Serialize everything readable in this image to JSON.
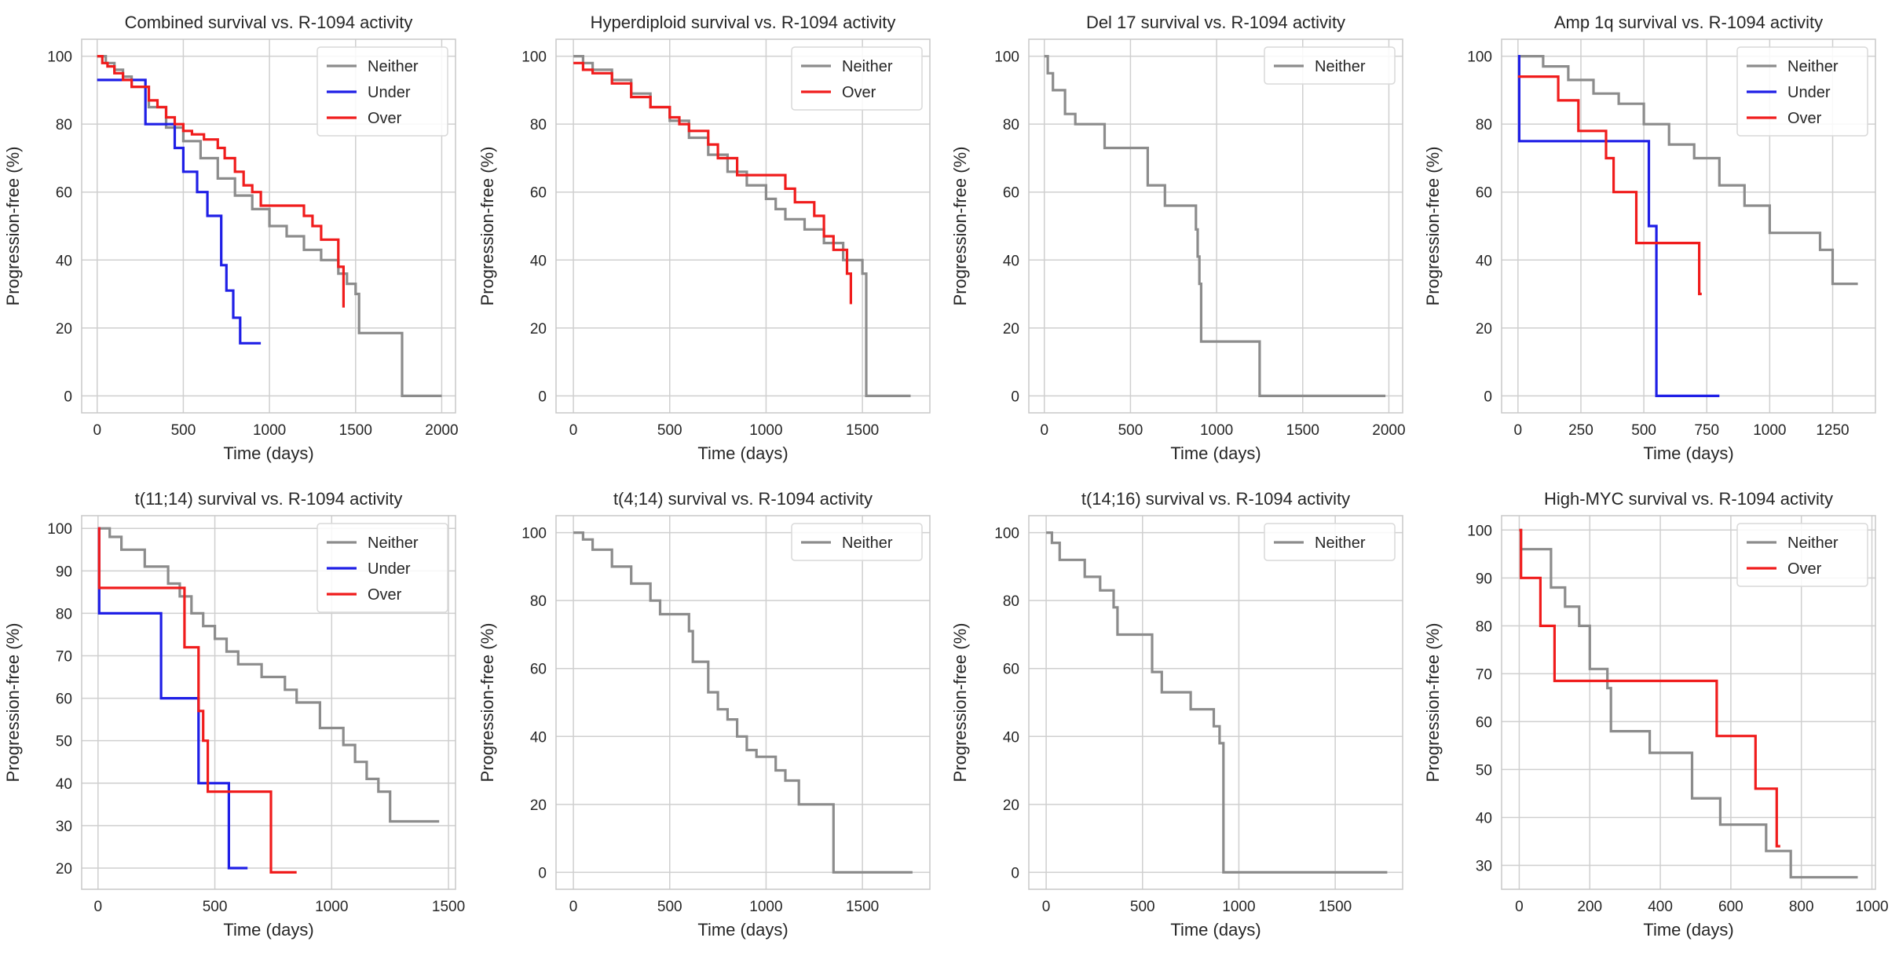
{
  "colors": {
    "Neither": "#8c8c8c",
    "Under": "#1f1fe6",
    "Over": "#f01c1c",
    "grid": "#cfcfcf",
    "spine": "#c8c8c8"
  },
  "chart_data": [
    {
      "type": "line",
      "step": true,
      "title": "Combined survival vs. R-1094 activity",
      "xlabel": "Time (days)",
      "ylabel": "Progression-free (%)",
      "xlim": [
        -90,
        2080
      ],
      "ylim": [
        -5,
        105
      ],
      "xticks": [
        0,
        500,
        1000,
        1500,
        2000
      ],
      "yticks": [
        0,
        20,
        40,
        60,
        80,
        100
      ],
      "legend": "top-right",
      "series": [
        {
          "name": "Neither",
          "x": [
            0,
            50,
            100,
            150,
            200,
            300,
            400,
            500,
            600,
            700,
            800,
            900,
            1000,
            1100,
            1200,
            1300,
            1400,
            1450,
            1500,
            1520,
            1750,
            1770,
            2000
          ],
          "y": [
            100,
            98,
            96,
            94,
            91,
            85,
            79,
            75,
            70,
            64,
            59,
            55,
            50,
            47,
            43,
            40,
            36,
            33,
            30,
            18.5,
            18.5,
            0,
            0
          ]
        },
        {
          "name": "Under",
          "x": [
            0,
            240,
            280,
            450,
            500,
            580,
            640,
            720,
            750,
            790,
            830,
            950
          ],
          "y": [
            93,
            93,
            80,
            73,
            66,
            60,
            53,
            38.5,
            31,
            23,
            15.5,
            15.5
          ]
        },
        {
          "name": "Over",
          "x": [
            0,
            30,
            60,
            100,
            150,
            200,
            300,
            350,
            400,
            450,
            500,
            550,
            620,
            700,
            740,
            800,
            850,
            900,
            950,
            1200,
            1250,
            1300,
            1400,
            1430
          ],
          "y": [
            100,
            98,
            97,
            95,
            93,
            91,
            87,
            85,
            82,
            80,
            78,
            77,
            75.5,
            73,
            70,
            66,
            62,
            60,
            56,
            53,
            50,
            46,
            38,
            26
          ]
        }
      ]
    },
    {
      "type": "line",
      "step": true,
      "title": "Hyperdiploid survival vs. R-1094 activity",
      "xlabel": "Time (days)",
      "ylabel": "Progression-free (%)",
      "xlim": [
        -90,
        1850
      ],
      "ylim": [
        -5,
        105
      ],
      "xticks": [
        0,
        500,
        1000,
        1500
      ],
      "yticks": [
        0,
        20,
        40,
        60,
        80,
        100
      ],
      "legend": "top-right",
      "series": [
        {
          "name": "Neither",
          "x": [
            0,
            50,
            100,
            200,
            300,
            400,
            500,
            600,
            700,
            800,
            900,
            1000,
            1050,
            1100,
            1200,
            1300,
            1400,
            1500,
            1520,
            1750
          ],
          "y": [
            100,
            98,
            96,
            93,
            89,
            85,
            81,
            76,
            71,
            66,
            62,
            58,
            55,
            52,
            49,
            45,
            40,
            36,
            0,
            0
          ]
        },
        {
          "name": "Over",
          "x": [
            0,
            50,
            100,
            200,
            300,
            400,
            500,
            550,
            600,
            700,
            750,
            850,
            950,
            1100,
            1150,
            1250,
            1300,
            1350,
            1420,
            1440
          ],
          "y": [
            98,
            96,
            95,
            92,
            88,
            85,
            82,
            80,
            78,
            74,
            70,
            65,
            65,
            61,
            57,
            53,
            47,
            43,
            36,
            27
          ]
        }
      ]
    },
    {
      "type": "line",
      "step": true,
      "title": "Del 17 survival vs. R-1094 activity",
      "xlabel": "Time (days)",
      "ylabel": "Progression-free (%)",
      "xlim": [
        -90,
        2080
      ],
      "ylim": [
        -5,
        105
      ],
      "xticks": [
        0,
        500,
        1000,
        1500,
        2000
      ],
      "yticks": [
        0,
        20,
        40,
        60,
        80,
        100
      ],
      "legend": "top-right",
      "series": [
        {
          "name": "Neither",
          "x": [
            0,
            20,
            50,
            120,
            180,
            350,
            600,
            700,
            880,
            890,
            900,
            910,
            1250,
            1980
          ],
          "y": [
            100,
            95,
            90,
            83,
            80,
            73,
            62,
            56,
            49,
            41,
            33,
            16,
            0,
            0
          ]
        }
      ]
    },
    {
      "type": "line",
      "step": true,
      "title": "Amp 1q survival vs. R-1094 activity",
      "xlabel": "Time (days)",
      "ylabel": "Progression-free (%)",
      "xlim": [
        -65,
        1420
      ],
      "ylim": [
        -5,
        105
      ],
      "xticks": [
        0,
        250,
        500,
        750,
        1000,
        1250
      ],
      "yticks": [
        0,
        20,
        40,
        60,
        80,
        100
      ],
      "legend": "top-right",
      "series": [
        {
          "name": "Neither",
          "x": [
            0,
            100,
            200,
            300,
            400,
            500,
            600,
            700,
            800,
            900,
            1000,
            1200,
            1250,
            1350
          ],
          "y": [
            100,
            97,
            93,
            89,
            86,
            80,
            74,
            70,
            62,
            56,
            48,
            43,
            33,
            33
          ]
        },
        {
          "name": "Under",
          "x": [
            0,
            5,
            520,
            550,
            800
          ],
          "y": [
            100,
            75,
            50,
            0,
            0
          ]
        },
        {
          "name": "Over",
          "x": [
            0,
            160,
            240,
            350,
            380,
            470,
            560,
            720,
            730
          ],
          "y": [
            94,
            87,
            78,
            70,
            60,
            45,
            45,
            30,
            30
          ]
        }
      ]
    },
    {
      "type": "line",
      "step": true,
      "title": "t(11;14) survival vs. R-1094 activity",
      "xlabel": "Time (days)",
      "ylabel": "Progression-free (%)",
      "xlim": [
        -70,
        1530
      ],
      "ylim": [
        15,
        103
      ],
      "xticks": [
        0,
        500,
        1000,
        1500
      ],
      "yticks": [
        20,
        30,
        40,
        50,
        60,
        70,
        80,
        90,
        100
      ],
      "legend": "top-right",
      "series": [
        {
          "name": "Neither",
          "x": [
            0,
            50,
            100,
            200,
            300,
            350,
            400,
            450,
            500,
            550,
            600,
            700,
            800,
            850,
            950,
            1050,
            1100,
            1150,
            1200,
            1250,
            1460
          ],
          "y": [
            100,
            98,
            95,
            91,
            87,
            84,
            80,
            77,
            74,
            71,
            68,
            65,
            62,
            59,
            53,
            49,
            45,
            41,
            38,
            31,
            31
          ]
        },
        {
          "name": "Under",
          "x": [
            0,
            5,
            270,
            430,
            560,
            640
          ],
          "y": [
            100,
            80,
            60,
            40,
            20,
            20
          ]
        },
        {
          "name": "Over",
          "x": [
            0,
            5,
            370,
            430,
            450,
            470,
            740,
            850
          ],
          "y": [
            100,
            86,
            72,
            57,
            50,
            38,
            19,
            19
          ]
        }
      ]
    },
    {
      "type": "line",
      "step": true,
      "title": "t(4;14) survival vs. R-1094 activity",
      "xlabel": "Time (days)",
      "ylabel": "Progression-free (%)",
      "xlim": [
        -90,
        1850
      ],
      "ylim": [
        -5,
        105
      ],
      "xticks": [
        0,
        500,
        1000,
        1500
      ],
      "yticks": [
        0,
        20,
        40,
        60,
        80,
        100
      ],
      "legend": "top-right",
      "series": [
        {
          "name": "Neither",
          "x": [
            0,
            50,
            100,
            200,
            300,
            400,
            450,
            600,
            620,
            700,
            750,
            800,
            850,
            900,
            950,
            1050,
            1100,
            1170,
            1350,
            1760
          ],
          "y": [
            100,
            98,
            95,
            90,
            85,
            80,
            76,
            71,
            62,
            53,
            48,
            45,
            40,
            36,
            34,
            30,
            27,
            20,
            0,
            0
          ]
        }
      ]
    },
    {
      "type": "line",
      "step": true,
      "title": "t(14;16) survival vs. R-1094 activity",
      "xlabel": "Time (days)",
      "ylabel": "Progression-free (%)",
      "xlim": [
        -90,
        1850
      ],
      "ylim": [
        -5,
        105
      ],
      "xticks": [
        0,
        500,
        1000,
        1500
      ],
      "yticks": [
        0,
        20,
        40,
        60,
        80,
        100
      ],
      "legend": "top-right",
      "series": [
        {
          "name": "Neither",
          "x": [
            0,
            30,
            70,
            200,
            280,
            350,
            370,
            550,
            600,
            650,
            750,
            870,
            900,
            920,
            1770
          ],
          "y": [
            100,
            97,
            92,
            87,
            83,
            78,
            70,
            59,
            53,
            53,
            48,
            43,
            38,
            0,
            0
          ]
        }
      ]
    },
    {
      "type": "line",
      "step": true,
      "title": "High-MYC survival vs. R-1094 activity",
      "xlabel": "Time (days)",
      "ylabel": "Progression-free (%)",
      "xlim": [
        -50,
        1010
      ],
      "ylim": [
        25,
        103
      ],
      "xticks": [
        0,
        200,
        400,
        600,
        800,
        1000
      ],
      "yticks": [
        30,
        40,
        50,
        60,
        70,
        80,
        90,
        100
      ],
      "legend": "top-right",
      "series": [
        {
          "name": "Neither",
          "x": [
            0,
            5,
            90,
            130,
            170,
            200,
            250,
            260,
            370,
            490,
            570,
            700,
            770,
            960
          ],
          "y": [
            100,
            96,
            88,
            84,
            80,
            71,
            67,
            58,
            53.5,
            44,
            38.5,
            33,
            27.5,
            27.5
          ]
        },
        {
          "name": "Over",
          "x": [
            0,
            5,
            60,
            100,
            550,
            560,
            670,
            730,
            740
          ],
          "y": [
            100,
            90,
            80,
            68.5,
            68.5,
            57,
            46,
            34,
            34
          ]
        }
      ]
    }
  ]
}
